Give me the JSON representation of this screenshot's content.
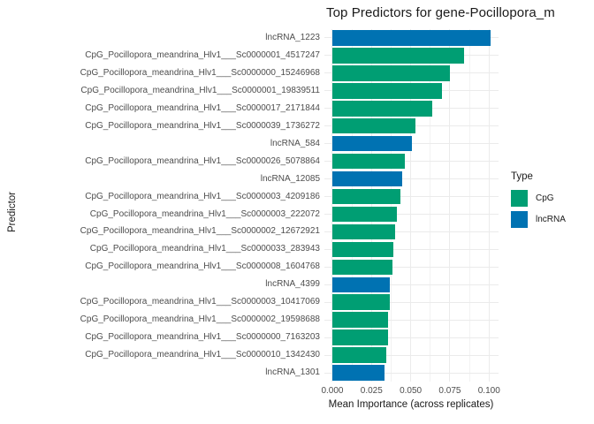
{
  "colors": {
    "cpg": "#009E73",
    "lncrna": "#0072B2",
    "grid_major": "#ebebeb",
    "grid_minor": "#f2f2f2",
    "tick_text": "#4d4d4d",
    "title_text": "#1a1a1a",
    "background": "#ffffff"
  },
  "chart_data": {
    "type": "bar",
    "orientation": "horizontal",
    "title": "Top Predictors for gene-Pocillopora_m",
    "xlabel": "Mean Importance (across replicates)",
    "ylabel": "Predictor",
    "xlim": [
      -0.00505,
      0.10605
    ],
    "x_ticks": [
      0,
      0.025,
      0.05,
      0.075,
      0.1
    ],
    "x_tick_labels": [
      "0.000",
      "0.025",
      "0.050",
      "0.075",
      "0.100"
    ],
    "grid": true,
    "legend": {
      "title": "Type",
      "position": "right",
      "entries": [
        {
          "label": "CpG",
          "color": "#009E73",
          "type_key": "CpG"
        },
        {
          "label": "lncRNA",
          "color": "#0072B2",
          "type_key": "lncRNA"
        }
      ]
    },
    "bars": [
      {
        "label": "lncRNA_1223",
        "type": "lncRNA",
        "value": 0.101
      },
      {
        "label": "CpG_Pocillopora_meandrina_Hlv1___Sc0000001_4517247",
        "type": "CpG",
        "value": 0.084
      },
      {
        "label": "CpG_Pocillopora_meandrina_Hlv1___Sc0000000_15246968",
        "type": "CpG",
        "value": 0.075
      },
      {
        "label": "CpG_Pocillopora_meandrina_Hlv1___Sc0000001_19839511",
        "type": "CpG",
        "value": 0.07
      },
      {
        "label": "CpG_Pocillopora_meandrina_Hlv1___Sc0000017_2171844",
        "type": "CpG",
        "value": 0.064
      },
      {
        "label": "CpG_Pocillopora_meandrina_Hlv1___Sc0000039_1736272",
        "type": "CpG",
        "value": 0.053
      },
      {
        "label": "lncRNA_584",
        "type": "lncRNA",
        "value": 0.051
      },
      {
        "label": "CpG_Pocillopora_meandrina_Hlv1___Sc0000026_5078864",
        "type": "CpG",
        "value": 0.046
      },
      {
        "label": "lncRNA_12085",
        "type": "lncRNA",
        "value": 0.0445
      },
      {
        "label": "CpG_Pocillopora_meandrina_Hlv1___Sc0000003_4209186",
        "type": "CpG",
        "value": 0.0435
      },
      {
        "label": "CpG_Pocillopora_meandrina_Hlv1___Sc0000003_222072",
        "type": "CpG",
        "value": 0.041
      },
      {
        "label": "CpG_Pocillopora_meandrina_Hlv1___Sc0000002_12672921",
        "type": "CpG",
        "value": 0.04
      },
      {
        "label": "CpG_Pocillopora_meandrina_Hlv1___Sc0000033_283943",
        "type": "CpG",
        "value": 0.0392
      },
      {
        "label": "CpG_Pocillopora_meandrina_Hlv1___Sc0000008_1604768",
        "type": "CpG",
        "value": 0.0386
      },
      {
        "label": "lncRNA_4399",
        "type": "lncRNA",
        "value": 0.0366
      },
      {
        "label": "CpG_Pocillopora_meandrina_Hlv1___Sc0000003_10417069",
        "type": "CpG",
        "value": 0.0366
      },
      {
        "label": "CpG_Pocillopora_meandrina_Hlv1___Sc0000002_19598688",
        "type": "CpG",
        "value": 0.0356
      },
      {
        "label": "CpG_Pocillopora_meandrina_Hlv1___Sc0000000_7163203",
        "type": "CpG",
        "value": 0.0356
      },
      {
        "label": "CpG_Pocillopora_meandrina_Hlv1___Sc0000010_1342430",
        "type": "CpG",
        "value": 0.0346
      },
      {
        "label": "lncRNA_1301",
        "type": "lncRNA",
        "value": 0.0332
      }
    ]
  }
}
